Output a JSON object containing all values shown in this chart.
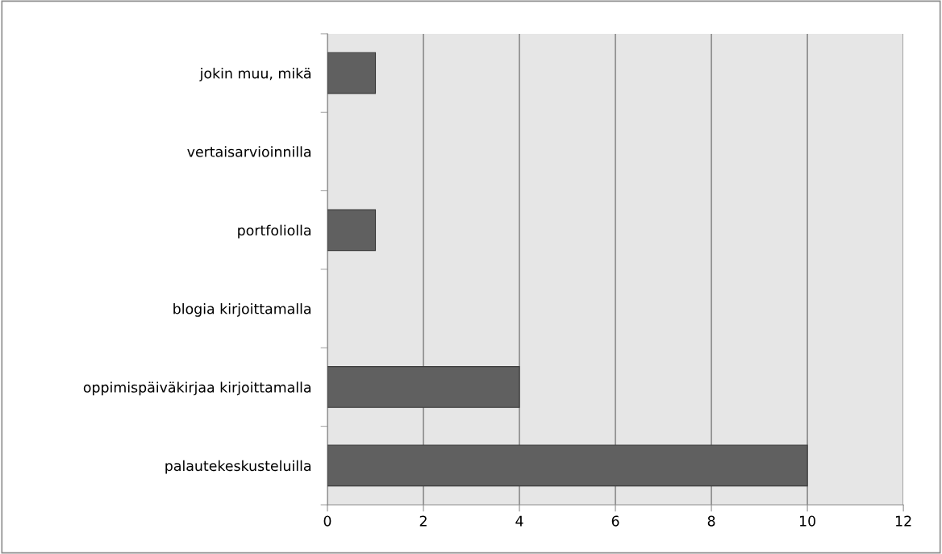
{
  "chart_data": {
    "type": "bar",
    "orientation": "horizontal",
    "categories": [
      "jokin muu, mikä",
      "vertaisarvioinnilla",
      "portfoliolla",
      "blogia kirjoittamalla",
      "oppimispäiväkirjaa kirjoittamalla",
      "palautekeskusteluilla"
    ],
    "values": [
      1,
      0,
      1,
      0,
      4,
      10
    ],
    "color": "#606060",
    "xlim": [
      0,
      12
    ],
    "xticks": [
      0,
      2,
      4,
      6,
      8,
      10,
      12
    ],
    "grid": "x"
  }
}
